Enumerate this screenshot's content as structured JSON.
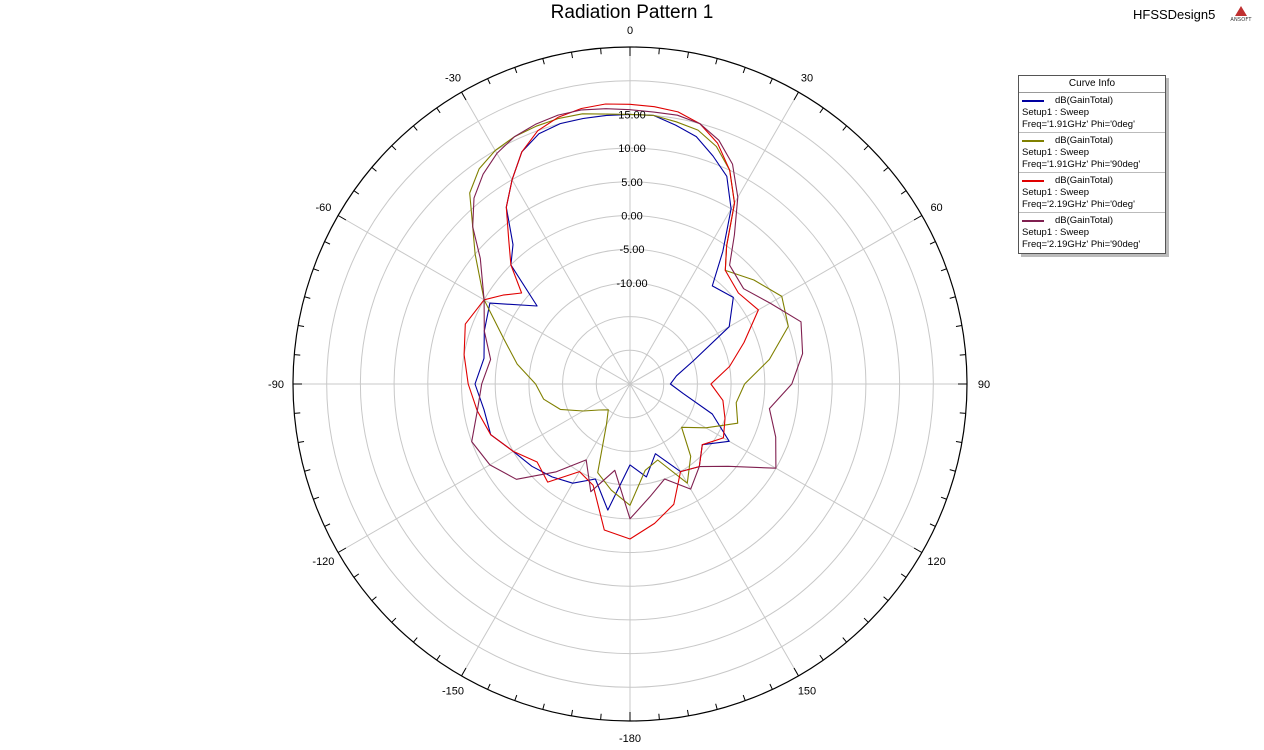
{
  "header": {
    "title": "Radiation Pattern 1",
    "design_name": "HFSSDesign5",
    "logo_text": "ANSOFT"
  },
  "legend": {
    "title": "Curve Info",
    "entries": [
      {
        "line1": "dB(GainTotal)",
        "line2": "Setup1 : Sweep",
        "line3": "Freq='1.91GHz' Phi='0deg'",
        "color": "#0000a0"
      },
      {
        "line1": "dB(GainTotal)",
        "line2": "Setup1 : Sweep",
        "line3": "Freq='1.91GHz' Phi='90deg'",
        "color": "#808000"
      },
      {
        "line1": "dB(GainTotal)",
        "line2": "Setup1 : Sweep",
        "line3": "Freq='2.19GHz' Phi='0deg'",
        "color": "#e00000"
      },
      {
        "line1": "dB(GainTotal)",
        "line2": "Setup1 : Sweep",
        "line3": "Freq='2.19GHz' Phi='90deg'",
        "color": "#802050"
      }
    ]
  },
  "chart_data": {
    "type": "polar-line",
    "title": "Radiation Pattern 1",
    "radial_axis": {
      "min": -25,
      "max": 25,
      "tick_labels": [
        "-10.00",
        "-5.00",
        "0.00",
        "5.00",
        "10.00",
        "15.00"
      ],
      "tick_values": [
        -10,
        -5,
        0,
        5,
        10,
        15
      ]
    },
    "angular_axis": {
      "zero_at": "top",
      "direction": "clockwise",
      "labels": [
        "0",
        "30",
        "60",
        "90",
        "120",
        "150",
        "-180",
        "-150",
        "-120",
        "-90",
        "-60",
        "-30"
      ],
      "label_angles": [
        0,
        30,
        60,
        90,
        120,
        150,
        180,
        210,
        240,
        270,
        300,
        330
      ]
    },
    "grid": true,
    "legend_position": "top-right",
    "series": [
      {
        "name": "dB(GainTotal) Setup1 : Sweep Freq='1.91GHz' Phi='0deg'",
        "color": "#0000a0",
        "theta": [
          -180,
          -170,
          -160,
          -150,
          -140,
          -130,
          -120,
          -110,
          -100,
          -90,
          -80,
          -70,
          -60,
          -50,
          -45,
          -40,
          -35,
          -30,
          -25,
          -20,
          -15,
          -10,
          -5,
          0,
          5,
          10,
          15,
          20,
          25,
          30,
          35,
          40,
          50,
          60,
          70,
          80,
          90,
          100,
          110,
          120,
          130,
          140,
          150,
          160,
          170
        ],
        "gain": [
          -13,
          -6,
          -10,
          -8,
          -7,
          -6,
          -5,
          -3,
          -3,
          -2,
          -3,
          -2,
          -1,
          -7,
          0,
          2,
          7,
          10,
          13,
          14.5,
          15,
          15,
          15,
          15,
          15,
          14,
          13,
          11,
          9,
          5,
          -1,
          -6,
          -5,
          -8,
          -15,
          -18,
          -19,
          -17,
          -12,
          -8,
          -11,
          -9,
          -10,
          -14,
          -11
        ]
      },
      {
        "name": "dB(GainTotal) Setup1 : Sweep Freq='1.91GHz' Phi='90deg'",
        "color": "#808000",
        "theta": [
          -180,
          -170,
          -160,
          -150,
          -140,
          -130,
          -120,
          -110,
          -100,
          -90,
          -80,
          -70,
          -60,
          -50,
          -45,
          -40,
          -35,
          -30,
          -25,
          -20,
          -15,
          -10,
          -5,
          0,
          5,
          10,
          15,
          20,
          25,
          30,
          35,
          40,
          50,
          60,
          70,
          80,
          90,
          100,
          110,
          120,
          130,
          140,
          150,
          160,
          170
        ],
        "gain": [
          -7,
          -9,
          -11,
          -18,
          -20,
          -19,
          -17,
          -14,
          -12,
          -11,
          -8,
          -5,
          0,
          5,
          8,
          12,
          14,
          15,
          15.5,
          15.7,
          15.8,
          15.7,
          15.2,
          15,
          15,
          14.5,
          14,
          12.5,
          10,
          6,
          0,
          -3,
          -1,
          1,
          0,
          -4,
          -8,
          -9,
          -8,
          -12,
          -15,
          -11,
          -8,
          -13,
          -12
        ]
      },
      {
        "name": "dB(GainTotal) Setup1 : Sweep Freq='2.19GHz' Phi='0deg'",
        "color": "#e00000",
        "theta": [
          -180,
          -170,
          -160,
          -150,
          -140,
          -130,
          -120,
          -110,
          -100,
          -90,
          -80,
          -70,
          -60,
          -55,
          -50,
          -45,
          -40,
          -35,
          -30,
          -25,
          -20,
          -15,
          -10,
          -5,
          0,
          5,
          10,
          15,
          20,
          25,
          30,
          35,
          40,
          50,
          60,
          70,
          80,
          90,
          100,
          110,
          120,
          130,
          140,
          150,
          160,
          170
        ],
        "gain": [
          -2,
          -3,
          -9,
          -10,
          -6,
          -7,
          -5,
          -3,
          -2,
          -1,
          0,
          1,
          0,
          -2,
          -4,
          0,
          3,
          7,
          10,
          13,
          15,
          16,
          16.5,
          16.7,
          16.5,
          16.3,
          16,
          15,
          13,
          10,
          6,
          0,
          -3,
          -4,
          -3,
          -7,
          -10,
          -13,
          -11,
          -10,
          -9,
          -11,
          -9,
          -10,
          -6,
          -4
        ]
      },
      {
        "name": "dB(GainTotal) Setup1 : Sweep Freq='2.19GHz' Phi='90deg'",
        "color": "#802050",
        "theta": [
          -180,
          -170,
          -160,
          -150,
          -140,
          -130,
          -120,
          -110,
          -100,
          -90,
          -80,
          -70,
          -60,
          -50,
          -45,
          -40,
          -35,
          -30,
          -25,
          -20,
          -15,
          -10,
          -5,
          0,
          5,
          10,
          15,
          20,
          25,
          30,
          35,
          40,
          50,
          60,
          70,
          80,
          90,
          100,
          110,
          120,
          130,
          140,
          150,
          160,
          170
        ],
        "gain": [
          -5,
          -12,
          -8,
          -12,
          -8,
          -3,
          -1,
          0,
          -2,
          -3,
          -4,
          -2,
          0,
          4,
          8,
          11,
          13,
          14.5,
          15.5,
          16,
          16.3,
          16.3,
          16,
          15.7,
          15.5,
          15.5,
          15,
          13.5,
          11,
          7,
          2,
          -2,
          -3,
          -1,
          2,
          1,
          -1,
          -4,
          -2,
          0,
          -6,
          -9,
          -7,
          -10,
          -8
        ]
      }
    ]
  }
}
